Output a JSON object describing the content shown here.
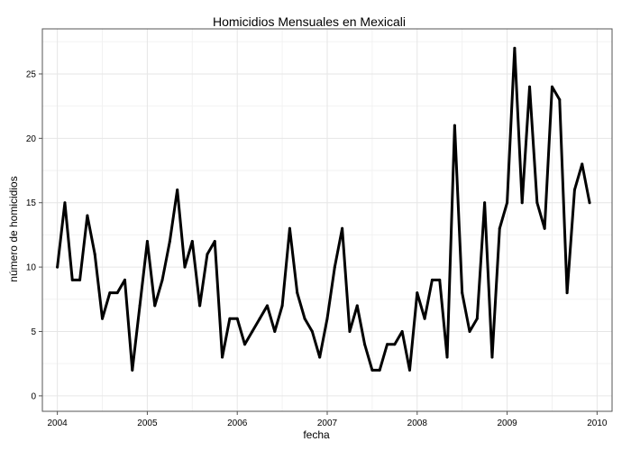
{
  "chart_data": {
    "type": "line",
    "title": "Homicidios Mensuales en Mexicali",
    "xlabel": "fecha",
    "ylabel": "número de homicidios",
    "x_ticks": [
      "2004",
      "2005",
      "2006",
      "2007",
      "2008",
      "2009",
      "2010"
    ],
    "y_ticks": [
      "0",
      "5",
      "10",
      "15",
      "20",
      "25"
    ],
    "xlim": [
      "2003-11",
      "2010-03"
    ],
    "ylim": [
      -1.2,
      28.5
    ],
    "grid": true,
    "x": [
      "2004-01",
      "2004-02",
      "2004-03",
      "2004-04",
      "2004-05",
      "2004-06",
      "2004-07",
      "2004-08",
      "2004-09",
      "2004-10",
      "2004-11",
      "2004-12",
      "2005-01",
      "2005-02",
      "2005-03",
      "2005-04",
      "2005-05",
      "2005-06",
      "2005-07",
      "2005-08",
      "2005-09",
      "2005-10",
      "2005-11",
      "2005-12",
      "2006-01",
      "2006-02",
      "2006-03",
      "2006-04",
      "2006-05",
      "2006-06",
      "2006-07",
      "2006-08",
      "2006-09",
      "2006-10",
      "2006-11",
      "2006-12",
      "2007-01",
      "2007-02",
      "2007-03",
      "2007-04",
      "2007-05",
      "2007-06",
      "2007-07",
      "2007-08",
      "2007-09",
      "2007-10",
      "2007-11",
      "2007-12",
      "2008-01",
      "2008-02",
      "2008-03",
      "2008-04",
      "2008-05",
      "2008-06",
      "2008-07",
      "2008-08",
      "2008-09",
      "2008-10",
      "2008-11",
      "2008-12",
      "2009-01",
      "2009-02",
      "2009-03",
      "2009-04",
      "2009-05",
      "2009-06",
      "2009-07",
      "2009-08",
      "2009-09",
      "2009-10",
      "2009-11",
      "2009-12"
    ],
    "series": [
      {
        "values": [
          10,
          15,
          9,
          9,
          14,
          11,
          6,
          8,
          8,
          9,
          2,
          7,
          12,
          7,
          9,
          12,
          16,
          10,
          12,
          7,
          11,
          12,
          3,
          6,
          6,
          4,
          5,
          6,
          7,
          5,
          7,
          13,
          8,
          6,
          5,
          3,
          6,
          10,
          13,
          5,
          7,
          4,
          2,
          2,
          4,
          4,
          5,
          2,
          8,
          6,
          9,
          9,
          3,
          21,
          8,
          5,
          6,
          15,
          3,
          13,
          15,
          27,
          15,
          24,
          15,
          13,
          24,
          23,
          8,
          16,
          18,
          15
        ],
        "color": "#000000"
      }
    ]
  }
}
